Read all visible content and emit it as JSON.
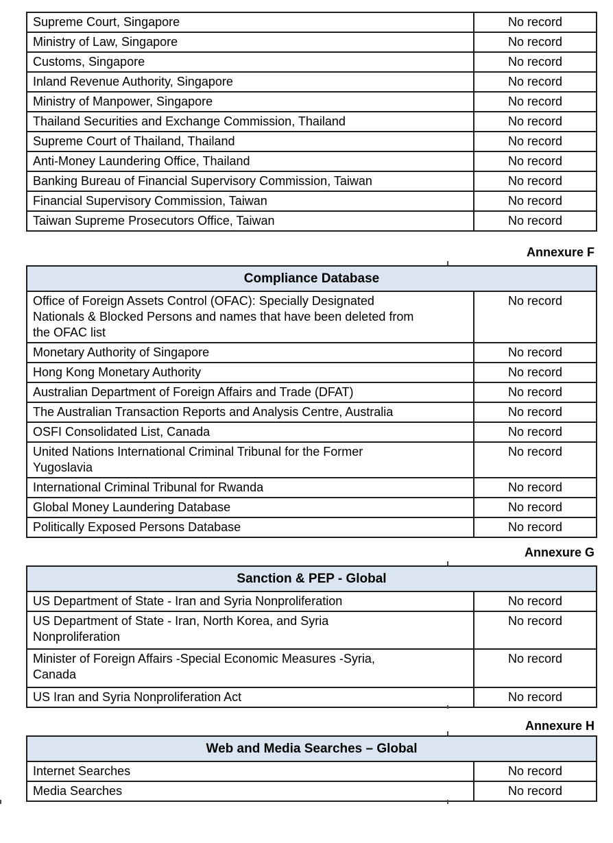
{
  "colors": {
    "header_band_bg": "#dbe5f1",
    "border": "#1f1f1f",
    "text": "#000000"
  },
  "tables": [
    {
      "annexure": null,
      "header": null,
      "rows": [
        {
          "source": "Supreme Court, Singapore",
          "result": "No record"
        },
        {
          "source": "Ministry of Law, Singapore",
          "result": "No record"
        },
        {
          "source": "Customs, Singapore",
          "result": "No record"
        },
        {
          "source": "Inland Revenue Authority, Singapore",
          "result": "No record"
        },
        {
          "source": "Ministry of Manpower, Singapore",
          "result": "No record"
        },
        {
          "source": "Thailand Securities and Exchange Commission, Thailand",
          "result": "No record"
        },
        {
          "source": "Supreme Court of Thailand, Thailand",
          "result": "No record"
        },
        {
          "source": "Anti-Money Laundering Office, Thailand",
          "result": "No record"
        },
        {
          "source": "Banking Bureau of Financial Supervisory Commission, Taiwan",
          "result": "No record"
        },
        {
          "source": "Financial Supervisory Commission, Taiwan",
          "result": "No record"
        },
        {
          "source": "Taiwan Supreme Prosecutors Office, Taiwan",
          "result": "No record"
        }
      ]
    },
    {
      "annexure": "Annexure F",
      "header": "Compliance Database",
      "rows": [
        {
          "source": "Office of Foreign Assets Control (OFAC): Specially Designated\nNationals & Blocked Persons and names that have been deleted from\nthe OFAC list",
          "result": "No record"
        },
        {
          "source": "Monetary Authority of Singapore",
          "result": "No record"
        },
        {
          "source": "Hong Kong Monetary Authority",
          "result": "No record"
        },
        {
          "source": "Australian Department of Foreign Affairs and Trade (DFAT)",
          "result": "No record"
        },
        {
          "source": "The Australian Transaction Reports and Analysis Centre, Australia",
          "result": "No record"
        },
        {
          "source": "OSFI Consolidated List, Canada",
          "result": "No record"
        },
        {
          "source": "United Nations International Criminal Tribunal for the Former\nYugoslavia",
          "result": "No record"
        },
        {
          "source": "International Criminal Tribunal for Rwanda",
          "result": "No record"
        },
        {
          "source": "Global Money Laundering Database",
          "result": "No record"
        },
        {
          "source": "Politically Exposed Persons Database",
          "result": "No record"
        }
      ]
    },
    {
      "annexure": "Annexure G",
      "header": "Sanction & PEP - Global",
      "rows": [
        {
          "source": "US Department of State - Iran and Syria Nonproliferation",
          "result": "No record"
        },
        {
          "source": "US Department of State - Iran, North Korea, and Syria\nNonproliferation",
          "result": "No record"
        },
        {
          "source": "Minister of Foreign Affairs -Special Economic Measures -Syria,\nCanada",
          "result": "No record"
        },
        {
          "source": "US Iran and Syria Nonproliferation Act",
          "result": "No record"
        }
      ]
    },
    {
      "annexure": "Annexure H",
      "header": "Web and Media Searches – Global",
      "rows": [
        {
          "source": "Internet Searches",
          "result": "No record"
        },
        {
          "source": "Media Searches",
          "result": "No record"
        }
      ]
    }
  ]
}
